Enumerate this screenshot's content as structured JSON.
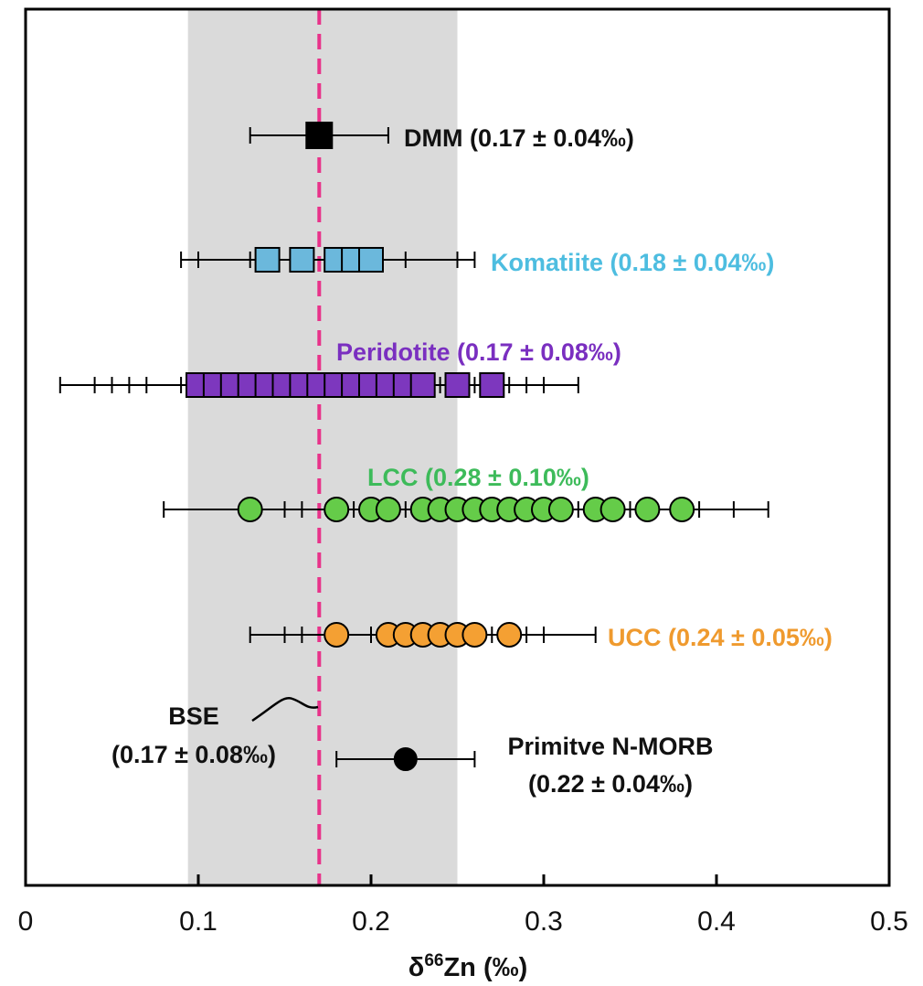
{
  "chart_data": {
    "type": "scatter",
    "title": "",
    "xlabel": "δ66Zn (‰)",
    "xlabel_parts": {
      "delta": "δ",
      "sup": "66",
      "rest": "Zn (‰)"
    },
    "ylabel": "",
    "xlim": [
      0,
      0.5
    ],
    "x_ticks": [
      0,
      0.1,
      0.2,
      0.3,
      0.4,
      0.5
    ],
    "x_tick_labels": [
      "0",
      "0.1",
      "0.2",
      "0.3",
      "0.4",
      "0.5"
    ],
    "grid": false,
    "bse_band": [
      0.094,
      0.25
    ],
    "bse_mean": 0.17,
    "bse_label_line1": "BSE",
    "bse_label_line2": "(0.17 ± 0.08‰)",
    "series": [
      {
        "name": "DMM",
        "label": "DMM (0.17 ± 0.04‰)",
        "marker": "square",
        "color": "#000000",
        "label_color": "#111111",
        "row": 1,
        "values": [
          0.17
        ],
        "error_caps": [
          0.13,
          0.21
        ]
      },
      {
        "name": "Komatiite",
        "label": "Komatiite (0.18 ± 0.04‰)",
        "marker": "square",
        "color": "#6BB8DC",
        "label_color": "#4DBDE0",
        "row": 2,
        "values": [
          0.14,
          0.16,
          0.18,
          0.19,
          0.2
        ],
        "error_caps": [
          0.09,
          0.1,
          0.13,
          0.22,
          0.25,
          0.26
        ]
      },
      {
        "name": "Peridotite",
        "label": "Peridotite (0.17 ± 0.08‰)",
        "marker": "square",
        "color": "#7D37BE",
        "label_color": "#7A2FC0",
        "row": 3,
        "values": [
          0.1,
          0.11,
          0.12,
          0.13,
          0.14,
          0.15,
          0.16,
          0.17,
          0.18,
          0.19,
          0.2,
          0.21,
          0.22,
          0.23,
          0.25,
          0.27
        ],
        "error_caps": [
          0.02,
          0.04,
          0.05,
          0.06,
          0.07,
          0.09,
          0.24,
          0.26,
          0.28,
          0.29,
          0.3,
          0.32
        ]
      },
      {
        "name": "LCC",
        "label": "LCC (0.28 ± 0.10‰)",
        "marker": "circle",
        "color": "#65CC49",
        "label_color": "#3DBB5A",
        "row": 4,
        "values": [
          0.13,
          0.18,
          0.2,
          0.21,
          0.23,
          0.24,
          0.25,
          0.26,
          0.27,
          0.28,
          0.29,
          0.3,
          0.31,
          0.33,
          0.34,
          0.36,
          0.38
        ],
        "error_caps": [
          0.08,
          0.15,
          0.16,
          0.19,
          0.22,
          0.32,
          0.35,
          0.39,
          0.41,
          0.43
        ]
      },
      {
        "name": "UCC",
        "label": "UCC (0.24 ± 0.05‰)",
        "marker": "circle",
        "color": "#F4A033",
        "label_color": "#EF9A2E",
        "row": 5,
        "values": [
          0.18,
          0.21,
          0.22,
          0.23,
          0.24,
          0.25,
          0.26,
          0.28
        ],
        "error_caps": [
          0.13,
          0.15,
          0.16,
          0.2,
          0.27,
          0.29,
          0.3,
          0.33
        ]
      },
      {
        "name": "Primitve N-MORB",
        "label_line1": "Primitve N-MORB",
        "label_line2": "(0.22 ± 0.04‰)",
        "marker": "circle",
        "color": "#000000",
        "label_color": "#111111",
        "row": 6,
        "values": [
          0.22
        ],
        "error_caps": [
          0.18,
          0.26
        ]
      }
    ]
  },
  "colors": {
    "band": "#DADADA",
    "mean_line": "#E8338A",
    "axis": "#000000"
  }
}
